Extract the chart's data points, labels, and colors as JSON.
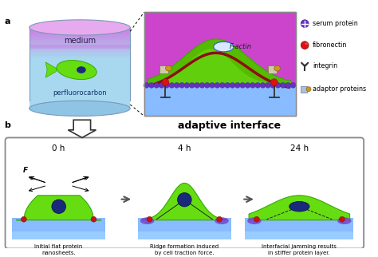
{
  "label_a": "a",
  "label_b": "b",
  "adaptive_interface_text": "adaptive interface",
  "panel_b_times": [
    "0 h",
    "4 h",
    "24 h"
  ],
  "panel_b_captions": [
    "Initial flat protein\nnanosheets.",
    "Ridge formation induced\nby cell traction force.",
    "Interfacial jamming results\nin stiffer protein layer."
  ],
  "legend_items": [
    "serum protein",
    "fibronectin",
    "integrin",
    "adaptor proteins"
  ],
  "title_top": "",
  "colors": {
    "bg": "#ffffff",
    "cylinder_pink_top": "#e866e8",
    "cylinder_blue_body": "#a8d8f0",
    "cylinder_edge": "#7799bb",
    "cell_green": "#66dd11",
    "cell_edge_green": "#33aa00",
    "nucleus_dark": "#1a2a7a",
    "factin_brown": "#8B1010",
    "zoom_bg_pink": "#cc44cc",
    "zoom_bg_green": "#55bb00",
    "zoom_substrate": "#88bbff",
    "protein_dots": "#6633cc",
    "fibronectin_red": "#cc1111",
    "integrin_dark": "#333333",
    "adaptor_cube": "#c0c8e0",
    "adaptor_gold": "#c8a020",
    "serum_purple": "#6633cc",
    "panel_b_substrate": "#88bbff",
    "panel_b_cell": "#66dd11",
    "panel_b_nucleus": "#1a2a7a",
    "panel_b_ridge": "#7744cc",
    "panel_b_box_edge": "#888888",
    "arrow_fill": "#ffffff",
    "arrow_edge": "#333333"
  }
}
